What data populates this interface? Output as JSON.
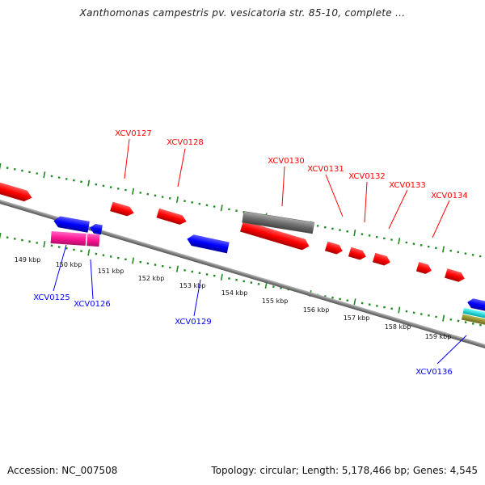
{
  "title": "Xanthomonas campestris pv. vesicatoria str. 85-10, complete ...",
  "footer": {
    "accession": "Accession: NC_007508",
    "summary": "Topology: circular; Length: 5,178,466 bp; Genes: 4,545"
  },
  "colors": {
    "forward_gene": "#ff0000",
    "reverse_gene": "#0000ff",
    "pseudo_gene": "#777777",
    "magenta_gene": "#ff1493",
    "tick": "#1f8a1f",
    "backbone": "#808080"
  },
  "labels": {
    "top": [
      {
        "name": "XCV0127",
        "color": "red"
      },
      {
        "name": "XCV0128",
        "color": "red"
      },
      {
        "name": "XCV0130",
        "color": "red"
      },
      {
        "name": "XCV0131",
        "color": "red"
      },
      {
        "name": "XCV0132",
        "color": "red"
      },
      {
        "name": "XCV0133",
        "color": "red"
      },
      {
        "name": "XCV0134",
        "color": "red"
      }
    ],
    "bottom": [
      {
        "name": "XCV0125",
        "color": "blue"
      },
      {
        "name": "XCV0126",
        "color": "blue"
      },
      {
        "name": "XCV0129",
        "color": "blue"
      },
      {
        "name": "XCV0136",
        "color": "blue"
      }
    ]
  },
  "scale_labels": [
    "149 kbp",
    "150 kbp",
    "151 kbp",
    "152 kbp",
    "153 kbp",
    "154 kbp",
    "155 kbp",
    "156 kbp",
    "157 kbp",
    "158 kbp",
    "159 kbp"
  ]
}
